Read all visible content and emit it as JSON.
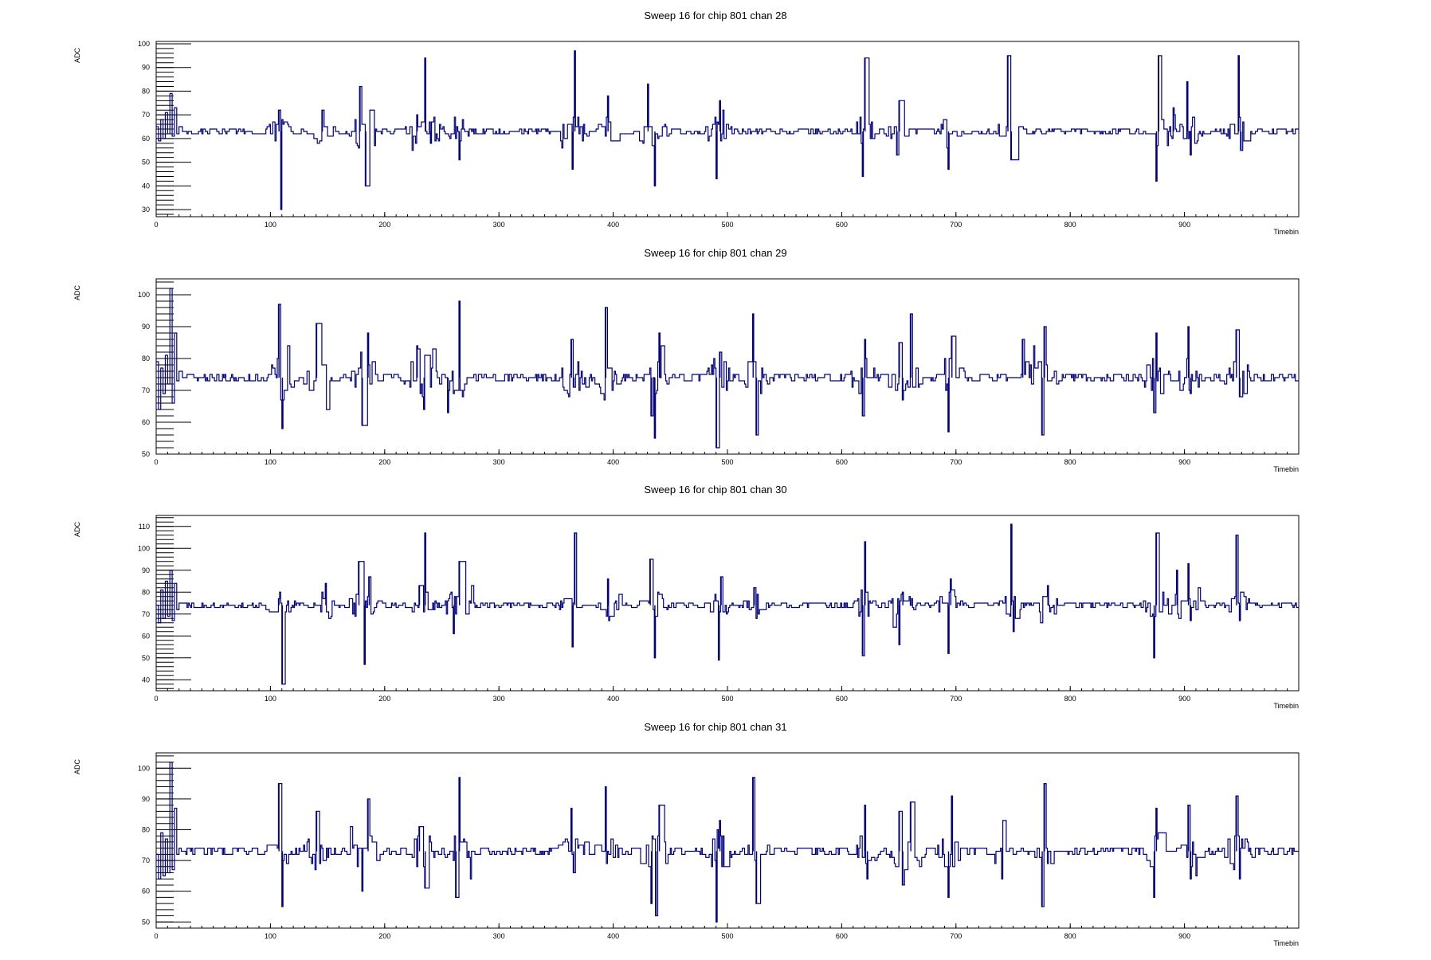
{
  "chart_data": [
    {
      "type": "line",
      "title": "Sweep 16 for chip 801 chan 28",
      "xlabel": "Timebin",
      "ylabel": "ADC",
      "xlim": [
        0,
        1000
      ],
      "ylim": [
        27,
        101
      ],
      "xticks": [
        0,
        100,
        200,
        300,
        400,
        500,
        600,
        700,
        800,
        900
      ],
      "yticks": [
        30,
        40,
        50,
        60,
        70,
        80,
        90,
        100
      ],
      "baseline": 63,
      "series": [
        {
          "color": "#000080",
          "start": [
            [
              0,
              65
            ],
            [
              2,
              59
            ],
            [
              4,
              68
            ],
            [
              6,
              60
            ],
            [
              8,
              71
            ],
            [
              10,
              62
            ],
            [
              12,
              79
            ],
            [
              14,
              61
            ],
            [
              16,
              73
            ],
            [
              18,
              62
            ],
            [
              20,
              65
            ]
          ],
          "spikes": [
            [
              107,
              72
            ],
            [
              109,
              30
            ],
            [
              145,
              72
            ],
            [
              178,
              82
            ],
            [
              183,
              40
            ],
            [
              228,
              70
            ],
            [
              235,
              94
            ],
            [
              240,
              58
            ],
            [
              265,
              51
            ],
            [
              364,
              47
            ],
            [
              366,
              97
            ],
            [
              395,
              78
            ],
            [
              430,
              83
            ],
            [
              436,
              40
            ],
            [
              490,
              43
            ],
            [
              493,
              76
            ],
            [
              618,
              44
            ],
            [
              620,
              94
            ],
            [
              648,
              53
            ],
            [
              650,
              76
            ],
            [
              693,
              47
            ],
            [
              745,
              95
            ],
            [
              748,
              51
            ],
            [
              875,
              42
            ],
            [
              877,
              95
            ],
            [
              890,
              73
            ],
            [
              902,
              84
            ],
            [
              905,
              53
            ],
            [
              947,
              95
            ],
            [
              949,
              55
            ]
          ]
        }
      ]
    },
    {
      "type": "line",
      "title": "Sweep 16 for chip 801 chan 29",
      "xlabel": "Timebin",
      "ylabel": "ADC",
      "xlim": [
        0,
        1000
      ],
      "ylim": [
        50,
        105
      ],
      "xticks": [
        0,
        100,
        200,
        300,
        400,
        500,
        600,
        700,
        800,
        900
      ],
      "yticks": [
        50,
        60,
        70,
        80,
        90,
        100
      ],
      "baseline": 74,
      "series": [
        {
          "color": "#000080",
          "start": [
            [
              0,
              79
            ],
            [
              2,
              64
            ],
            [
              4,
              77
            ],
            [
              6,
              69
            ],
            [
              8,
              81
            ],
            [
              10,
              72
            ],
            [
              12,
              102
            ],
            [
              14,
              66
            ],
            [
              16,
              88
            ],
            [
              18,
              73
            ],
            [
              20,
              76
            ]
          ],
          "spikes": [
            [
              107,
              97
            ],
            [
              110,
              58
            ],
            [
              140,
              91
            ],
            [
              180,
              59
            ],
            [
              185,
              88
            ],
            [
              228,
              84
            ],
            [
              234,
              64
            ],
            [
              255,
              63
            ],
            [
              265,
              98
            ],
            [
              363,
              86
            ],
            [
              365,
              71
            ],
            [
              393,
              96
            ],
            [
              433,
              62
            ],
            [
              436,
              55
            ],
            [
              440,
              88
            ],
            [
              490,
              52
            ],
            [
              493,
              82
            ],
            [
              522,
              94
            ],
            [
              525,
              56
            ],
            [
              618,
              62
            ],
            [
              620,
              86
            ],
            [
              650,
              85
            ],
            [
              653,
              67
            ],
            [
              660,
              94
            ],
            [
              693,
              57
            ],
            [
              696,
              87
            ],
            [
              758,
              86
            ],
            [
              775,
              56
            ],
            [
              777,
              90
            ],
            [
              873,
              63
            ],
            [
              875,
              88
            ],
            [
              903,
              90
            ],
            [
              905,
              69
            ],
            [
              945,
              89
            ],
            [
              948,
              68
            ]
          ]
        }
      ]
    },
    {
      "type": "line",
      "title": "Sweep 16 for chip 801 chan 30",
      "xlabel": "Timebin",
      "ylabel": "ADC",
      "xlim": [
        0,
        1000
      ],
      "ylim": [
        35,
        115
      ],
      "xticks": [
        0,
        100,
        200,
        300,
        400,
        500,
        600,
        700,
        800,
        900
      ],
      "yticks": [
        40,
        50,
        60,
        70,
        80,
        90,
        100,
        110
      ],
      "baseline": 74,
      "series": [
        {
          "color": "#000080",
          "start": [
            [
              0,
              74
            ],
            [
              2,
              66
            ],
            [
              4,
              81
            ],
            [
              6,
              68
            ],
            [
              8,
              85
            ],
            [
              10,
              69
            ],
            [
              12,
              90
            ],
            [
              14,
              67
            ],
            [
              16,
              84
            ],
            [
              18,
              72
            ],
            [
              20,
              75
            ]
          ],
          "spikes": [
            [
              107,
              77
            ],
            [
              110,
              38
            ],
            [
              148,
              84
            ],
            [
              177,
              94
            ],
            [
              182,
              47
            ],
            [
              186,
              87
            ],
            [
              230,
              83
            ],
            [
              235,
              107
            ],
            [
              260,
              61
            ],
            [
              265,
              94
            ],
            [
              364,
              55
            ],
            [
              366,
              107
            ],
            [
              395,
              86
            ],
            [
              432,
              95
            ],
            [
              436,
              50
            ],
            [
              492,
              49
            ],
            [
              494,
              87
            ],
            [
              523,
              82
            ],
            [
              618,
              51
            ],
            [
              620,
              103
            ],
            [
              650,
              56
            ],
            [
              653,
              80
            ],
            [
              693,
              52
            ],
            [
              695,
              86
            ],
            [
              748,
              111
            ],
            [
              750,
              62
            ],
            [
              780,
              83
            ],
            [
              873,
              50
            ],
            [
              875,
              107
            ],
            [
              893,
              90
            ],
            [
              903,
              93
            ],
            [
              905,
              67
            ],
            [
              945,
              106
            ],
            [
              948,
              67
            ]
          ]
        }
      ]
    },
    {
      "type": "line",
      "title": "Sweep 16 for chip 801 chan 31",
      "xlabel": "Timebin",
      "ylabel": "ADC",
      "xlim": [
        0,
        1000
      ],
      "ylim": [
        48,
        105
      ],
      "xticks": [
        0,
        100,
        200,
        300,
        400,
        500,
        600,
        700,
        800,
        900
      ],
      "yticks": [
        50,
        60,
        70,
        80,
        90,
        100
      ],
      "baseline": 73,
      "series": [
        {
          "color": "#000080",
          "start": [
            [
              0,
              72
            ],
            [
              2,
              64
            ],
            [
              4,
              79
            ],
            [
              6,
              65
            ],
            [
              8,
              77
            ],
            [
              10,
              66
            ],
            [
              12,
              102
            ],
            [
              14,
              67
            ],
            [
              16,
              87
            ],
            [
              18,
              72
            ],
            [
              20,
              74
            ]
          ],
          "spikes": [
            [
              107,
              95
            ],
            [
              110,
              55
            ],
            [
              140,
              86
            ],
            [
              180,
              60
            ],
            [
              185,
              90
            ],
            [
              230,
              81
            ],
            [
              235,
              61
            ],
            [
              262,
              58
            ],
            [
              265,
              97
            ],
            [
              363,
              87
            ],
            [
              365,
              66
            ],
            [
              393,
              94
            ],
            [
              433,
              56
            ],
            [
              437,
              52
            ],
            [
              440,
              88
            ],
            [
              490,
              50
            ],
            [
              493,
              83
            ],
            [
              522,
              97
            ],
            [
              525,
              56
            ],
            [
              620,
              88
            ],
            [
              622,
              64
            ],
            [
              650,
              86
            ],
            [
              653,
              62
            ],
            [
              660,
              89
            ],
            [
              693,
              58
            ],
            [
              696,
              91
            ],
            [
              740,
              64
            ],
            [
              775,
              55
            ],
            [
              777,
              95
            ],
            [
              873,
              58
            ],
            [
              875,
              87
            ],
            [
              903,
              88
            ],
            [
              905,
              64
            ],
            [
              945,
              91
            ],
            [
              948,
              64
            ]
          ]
        }
      ]
    }
  ]
}
